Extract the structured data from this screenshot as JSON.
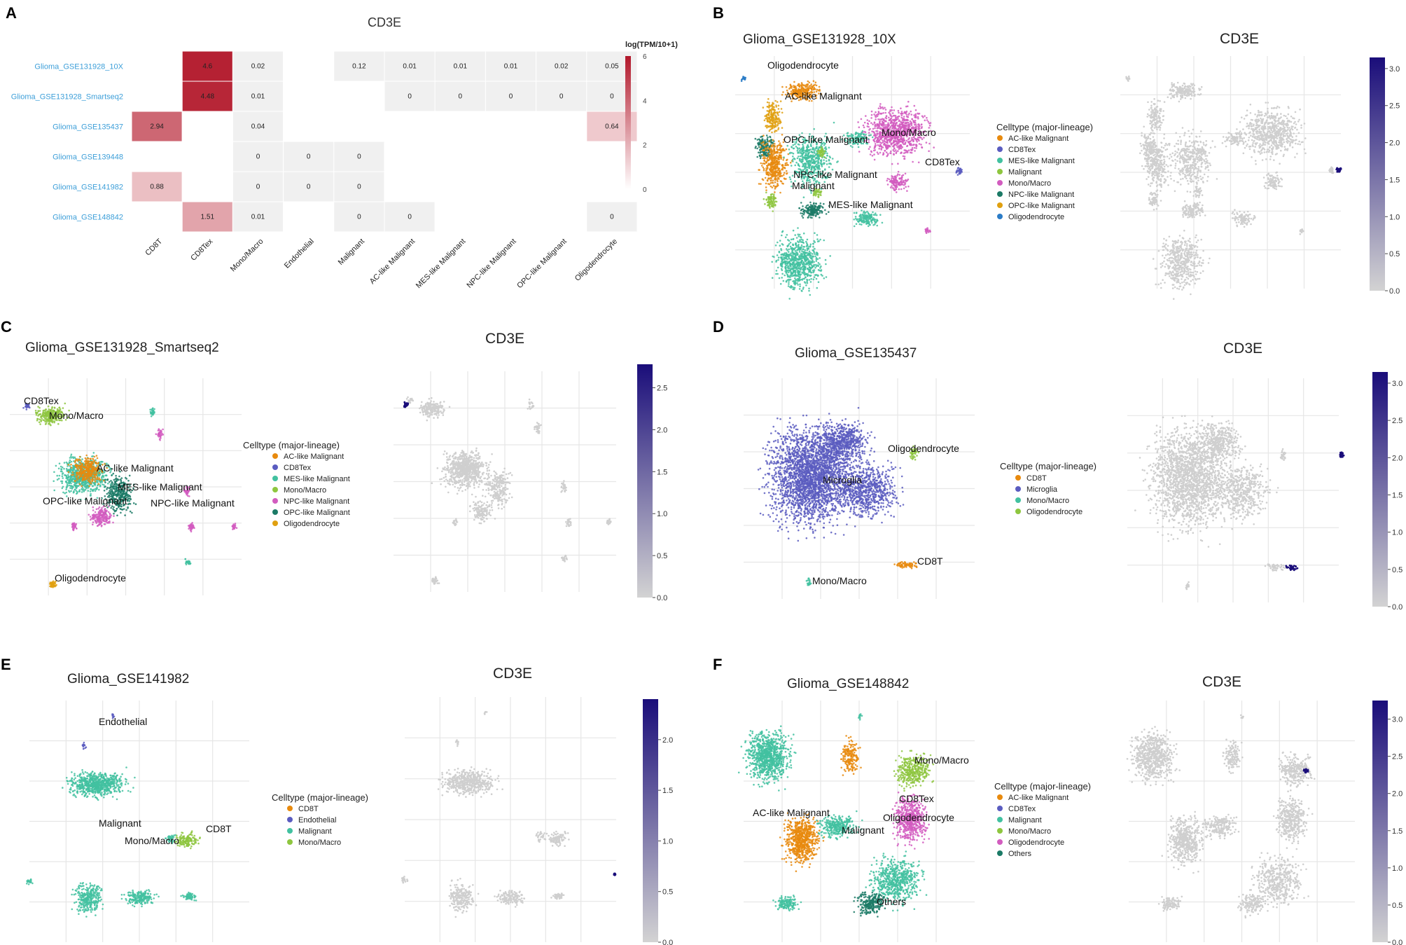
{
  "colors": {
    "heat_low": "#f0f0f0",
    "heat_high": "#b2182b",
    "feat_low": "#d3d3d3",
    "feat_high": "#1a0d7a",
    "row_label": "#3d9fd9",
    "orange": "#e88a0e",
    "purple": "#5a5cc0",
    "teal": "#42c1a0",
    "green": "#8ec63f",
    "magenta": "#d25cbf",
    "darkteal": "#1b7a66",
    "gold": "#e0a010",
    "blue": "#2b7cc7",
    "grey": "#cfcfcf"
  },
  "panel_a": {
    "letter": "A",
    "chart_data": {
      "type": "heatmap",
      "title": "CD3E",
      "colorbar_title": "log(TPM/10+1)",
      "colorbar_ticks": [
        "6",
        "4",
        "2",
        "0"
      ],
      "zlim": [
        0,
        6
      ],
      "rows": [
        "Glioma_GSE131928_10X",
        "Glioma_GSE131928_Smartseq2",
        "Glioma_GSE135437",
        "Glioma_GSE139448",
        "Glioma_GSE141982",
        "Glioma_GSE148842"
      ],
      "columns": [
        "CD8T",
        "CD8Tex",
        "Mono/Macro",
        "Endothelial",
        "Malignant",
        "AC-like Malignant",
        "MES-like Malignant",
        "NPC-like Malignant",
        "OPC-like Malignant",
        "Oligodendrocyte"
      ],
      "cells": [
        [
          null,
          "4.6",
          "0.02",
          null,
          "0.12",
          "0.01",
          "0.01",
          "0.01",
          "0.02",
          "0.05"
        ],
        [
          null,
          "4.48",
          "0.01",
          null,
          null,
          "0",
          "0",
          "0",
          "0",
          "0"
        ],
        [
          "2.94",
          null,
          "0.04",
          null,
          null,
          null,
          null,
          null,
          null,
          "0.64"
        ],
        [
          null,
          null,
          "0",
          "0",
          "0",
          null,
          null,
          null,
          null,
          null
        ],
        [
          "0.88",
          null,
          "0",
          "0",
          "0",
          null,
          null,
          null,
          null,
          null
        ],
        [
          null,
          "1.51",
          "0.01",
          null,
          "0",
          "0",
          null,
          null,
          null,
          "0"
        ]
      ]
    }
  },
  "panels": [
    {
      "letter": "B",
      "chart_data": {
        "type": "scatter",
        "title": "Glioma_GSE131928_10X",
        "feature_title": "CD3E",
        "legend_title": "Celltype (major-lineage)",
        "legend": [
          "AC-like Malignant",
          "CD8Tex",
          "MES-like Malignant",
          "Malignant",
          "Mono/Macro",
          "NPC-like Malignant",
          "OPC-like Malignant",
          "Oligodendrocyte"
        ],
        "legend_colors": [
          "orange",
          "purple",
          "teal",
          "green",
          "magenta",
          "darkteal",
          "gold",
          "blue"
        ],
        "cluster_labels": [
          "Oligodendrocyte",
          "AC-like Malignant",
          "OPC-like Malignant",
          "Mono/Macro",
          "CD8Tex",
          "NPC-like Malignant",
          "Malignant",
          "MES-like Malignant"
        ],
        "colorbar_ticks": [
          "3.0",
          "2.5",
          "2.0",
          "1.5",
          "1.0",
          "0.5",
          "0.0"
        ],
        "colorbar_max": 3.15
      }
    },
    {
      "letter": "C",
      "chart_data": {
        "type": "scatter",
        "title": "Glioma_GSE131928_Smartseq2",
        "feature_title": "CD3E",
        "legend_title": "Celltype (major-lineage)",
        "legend": [
          "AC-like Malignant",
          "CD8Tex",
          "MES-like Malignant",
          "Mono/Macro",
          "NPC-like Malignant",
          "OPC-like Malignant",
          "Oligodendrocyte"
        ],
        "legend_colors": [
          "orange",
          "purple",
          "teal",
          "green",
          "magenta",
          "darkteal",
          "gold"
        ],
        "cluster_labels": [
          "CD8Tex",
          "Mono/Macro",
          "AC-like Malignant",
          "MES-like Malignant",
          "OPC-like Malignant",
          "NPC-like Malignant",
          "Oligodendrocyte"
        ],
        "colorbar_ticks": [
          "2.5",
          "2.0",
          "1.5",
          "1.0",
          "0.5",
          "0.0"
        ],
        "colorbar_max": 2.78
      }
    },
    {
      "letter": "D",
      "chart_data": {
        "type": "scatter",
        "title": "Glioma_GSE135437",
        "feature_title": "CD3E",
        "legend_title": "Celltype (major-lineage)",
        "legend": [
          "CD8T",
          "Microglia",
          "Mono/Macro",
          "Oligodendrocyte"
        ],
        "legend_colors": [
          "orange",
          "purple",
          "teal",
          "green"
        ],
        "cluster_labels": [
          "Oligodendrocyte",
          "Microglia",
          "CD8T",
          "Mono/Macro"
        ],
        "colorbar_ticks": [
          "3.0",
          "2.5",
          "2.0",
          "1.5",
          "1.0",
          "0.5",
          "0.0"
        ],
        "colorbar_max": 3.15
      }
    },
    {
      "letter": "E",
      "chart_data": {
        "type": "scatter",
        "title": "Glioma_GSE141982",
        "feature_title": "CD3E",
        "legend_title": "Celltype (major-lineage)",
        "legend": [
          "CD8T",
          "Endothelial",
          "Malignant",
          "Mono/Macro"
        ],
        "legend_colors": [
          "orange",
          "purple",
          "teal",
          "green"
        ],
        "cluster_labels": [
          "Endothelial",
          "Malignant",
          "Mono/Macro",
          "CD8T"
        ],
        "colorbar_ticks": [
          "2.0",
          "1.5",
          "1.0",
          "0.5",
          "0.0"
        ],
        "colorbar_max": 2.4
      }
    },
    {
      "letter": "F",
      "chart_data": {
        "type": "scatter",
        "title": "Glioma_GSE148842",
        "feature_title": "CD3E",
        "legend_title": "Celltype (major-lineage)",
        "legend": [
          "AC-like Malignant",
          "CD8Tex",
          "Malignant",
          "Mono/Macro",
          "Oligodendrocyte",
          "Others"
        ],
        "legend_colors": [
          "orange",
          "purple",
          "teal",
          "green",
          "magenta",
          "darkteal"
        ],
        "cluster_labels": [
          "Mono/Macro",
          "CD8Tex",
          "AC-like Malignant",
          "Oligodendrocyte",
          "Malignant",
          "Others"
        ],
        "colorbar_ticks": [
          "3.0",
          "2.5",
          "2.0",
          "1.5",
          "1.0",
          "0.5",
          "0.0"
        ],
        "colorbar_max": 3.25
      }
    }
  ]
}
